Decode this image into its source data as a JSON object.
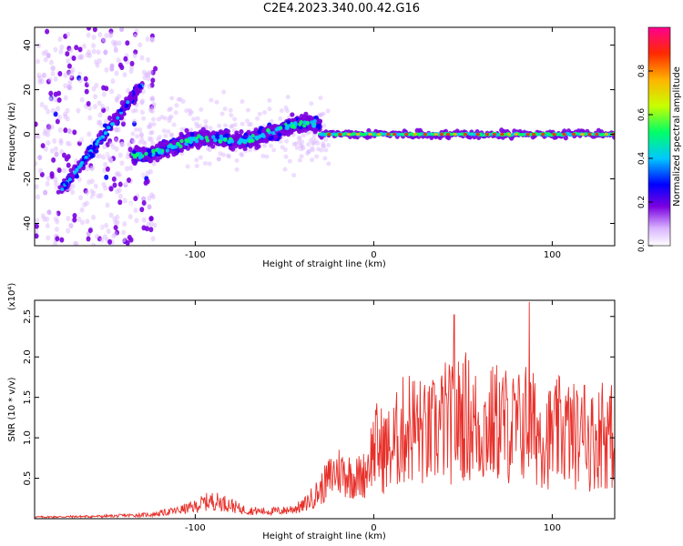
{
  "title": "C2E4.2023.340.00.42.G16",
  "chart_data": [
    {
      "type": "heatmap",
      "xlabel": "Height of straight line (km)",
      "ylabel": "Frequency (Hz)",
      "xlim": [
        -190,
        135
      ],
      "ylim": [
        -50,
        48
      ],
      "xticks": [
        -100,
        0,
        100
      ],
      "yticks": [
        -40,
        -20,
        0,
        20,
        40
      ],
      "grid": false,
      "colorbar": {
        "label": "Normalized spectral amplitude",
        "range": [
          0.0,
          1.0
        ],
        "ticks": [
          "0.0",
          "0.2",
          "0.4",
          "0.6",
          "0.8"
        ],
        "colors": [
          "#ffffff",
          "#d9b3ff",
          "#7a00e0",
          "#0000ff",
          "#00c8ff",
          "#00ff66",
          "#c8ff00",
          "#ffb300",
          "#ff2a00",
          "#ff0090"
        ]
      },
      "features": [
        {
          "label": "diagonal streak",
          "x": [
            -175,
            -130
          ],
          "y": [
            -25,
            22
          ]
        },
        {
          "label": "noisy band",
          "x": [
            -135,
            -30
          ],
          "y": [
            -12,
            8
          ]
        },
        {
          "label": "steady line",
          "x": [
            -30,
            135
          ],
          "y": [
            0,
            0
          ]
        }
      ]
    },
    {
      "type": "line",
      "xlabel": "Height of straight line (km)",
      "ylabel": "SNR (10 * v/v)",
      "yscale_label": "(x10⁴)",
      "xlim": [
        -190,
        135
      ],
      "ylim": [
        0,
        2.7
      ],
      "xticks": [
        -100,
        0,
        100
      ],
      "yticks": [
        "0.5",
        "1.0",
        "1.5",
        "2.0",
        "2.5"
      ],
      "series": [
        {
          "color": "#e8302a",
          "x": [
            -190,
            -150,
            -125,
            -110,
            -100,
            -95,
            -90,
            -85,
            -80,
            -75,
            -70,
            -60,
            -50,
            -40,
            -35,
            -30,
            -25,
            -20,
            -15,
            -10,
            -5,
            0,
            5,
            10,
            15,
            20,
            25,
            30,
            35,
            40,
            45,
            50,
            55,
            60,
            65,
            70,
            75,
            80,
            85,
            90,
            95,
            100,
            105,
            110,
            115,
            120,
            125,
            130,
            135
          ],
          "y": [
            0.02,
            0.03,
            0.05,
            0.1,
            0.15,
            0.2,
            0.22,
            0.2,
            0.17,
            0.12,
            0.1,
            0.09,
            0.1,
            0.15,
            0.25,
            0.35,
            0.5,
            0.6,
            0.55,
            0.5,
            0.55,
            0.9,
            0.85,
            0.85,
            1.05,
            1.15,
            1.1,
            1.0,
            1.1,
            1.2,
            1.15,
            1.3,
            1.2,
            1.1,
            1.15,
            1.2,
            1.15,
            1.1,
            1.2,
            1.1,
            1.05,
            1.0,
            1.1,
            1.05,
            1.0,
            0.95,
            1.0,
            1.05,
            1.0
          ],
          "peaks": [
            [
              45,
              2.52
            ],
            [
              87,
              2.68
            ],
            [
              118,
              1.65
            ],
            [
              128,
              1.68
            ]
          ]
        }
      ]
    }
  ]
}
